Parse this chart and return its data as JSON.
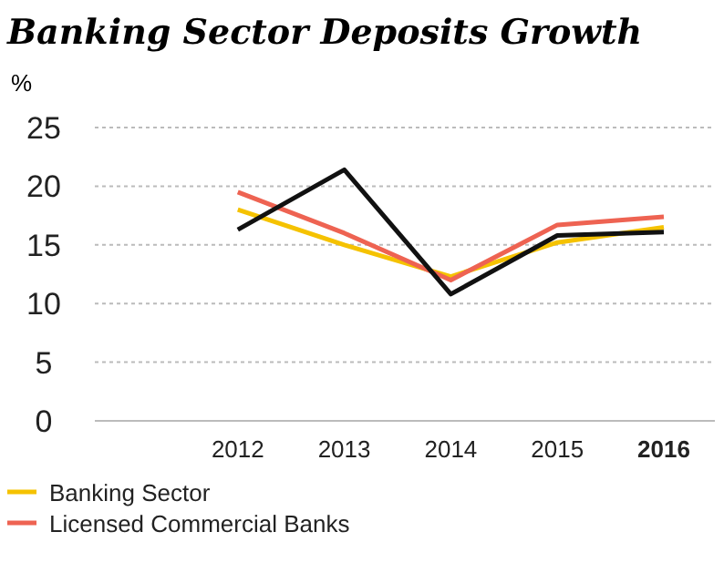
{
  "chart_data": {
    "type": "line",
    "title": "Banking Sector Deposits Growth",
    "ylabel": "%",
    "categories": [
      null,
      "2012",
      "2013",
      "2014",
      "2015",
      "2016"
    ],
    "series": [
      {
        "name": "Banking Sector",
        "color": "#f5c200",
        "values": [
          null,
          18,
          15,
          12.3,
          15.2,
          16.5
        ]
      },
      {
        "name": "Licensed Commercial Banks",
        "color": "#ee6352",
        "values": [
          null,
          19.5,
          16,
          12,
          16.7,
          17.4
        ]
      },
      {
        "color": "#111111",
        "values": [
          null,
          16.3,
          21.4,
          10.8,
          15.8,
          16.1
        ]
      }
    ],
    "ylim": [
      0,
      25
    ],
    "yticks": [
      0,
      5,
      10,
      15,
      20,
      25
    ],
    "grid": "y",
    "legend": "bottom",
    "line_style": "solid"
  }
}
